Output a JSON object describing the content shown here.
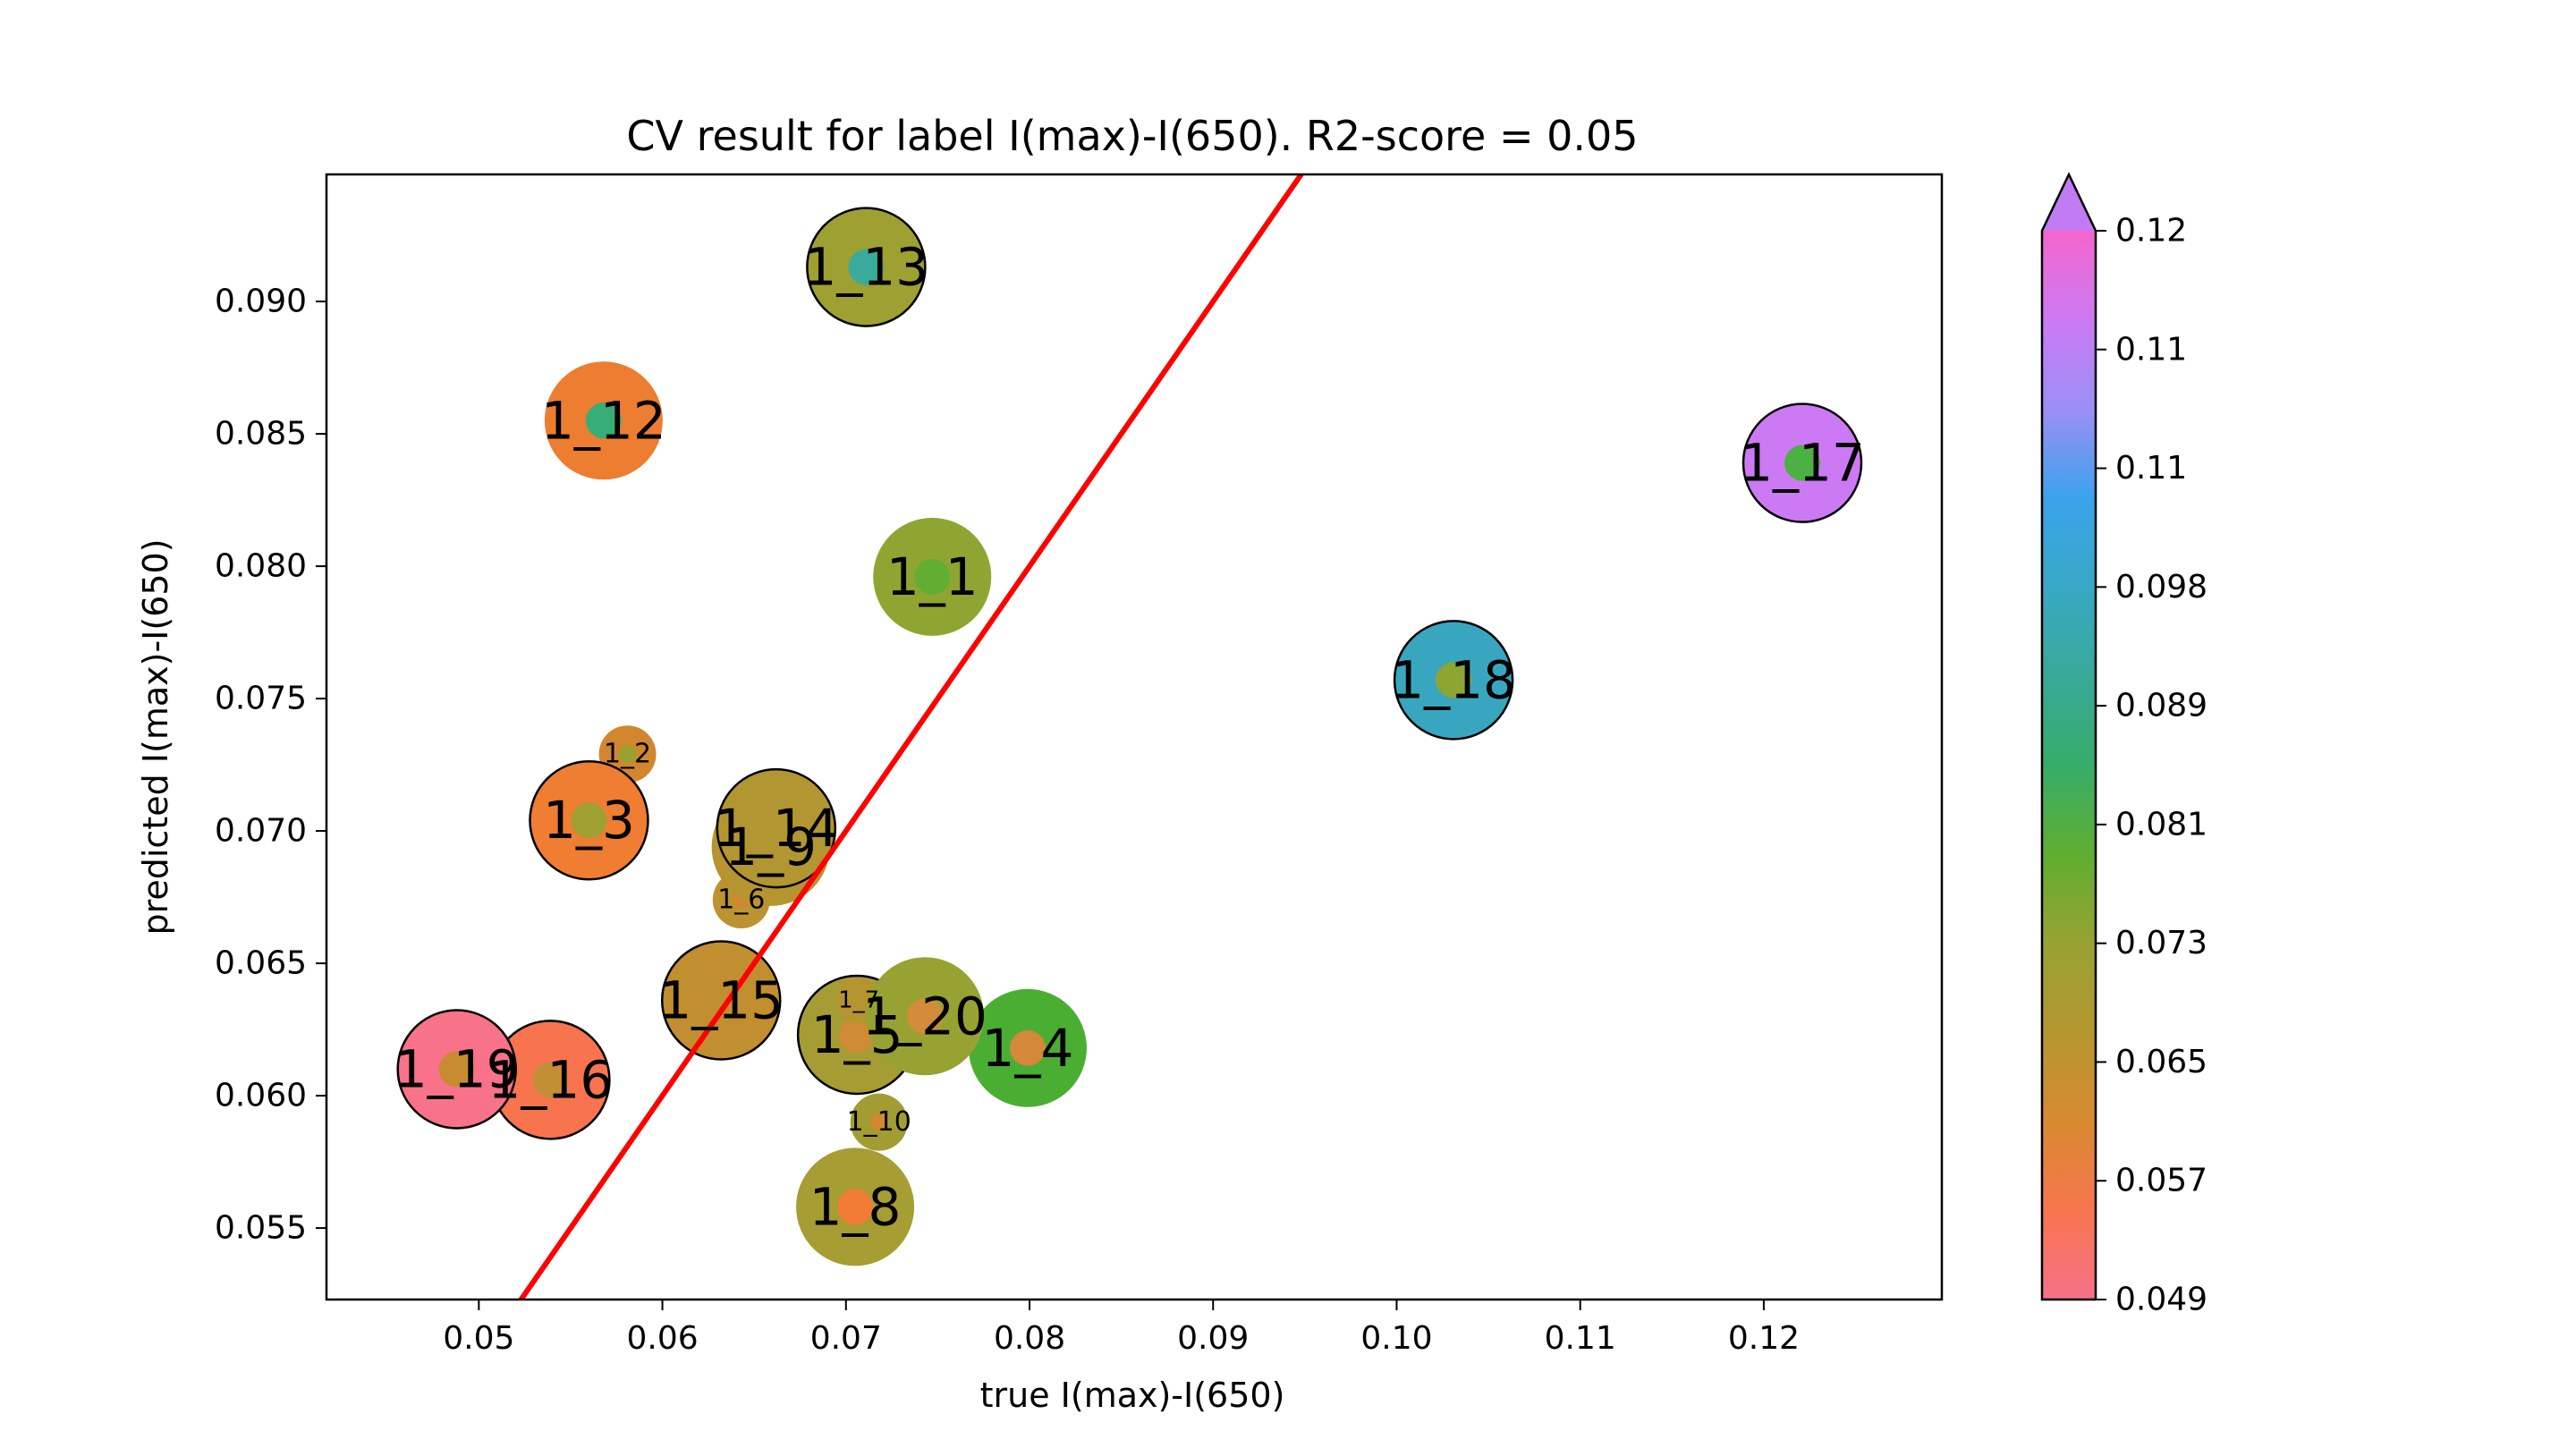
{
  "chart_data": {
    "type": "scatter",
    "title": "CV result for label I(max)-I(650). R2-score = 0.05",
    "xlabel": "true I(max)-I(650)",
    "ylabel": "predicted I(max)-I(650)",
    "xlim": [
      0.0417,
      0.1297
    ],
    "ylim": [
      0.0523,
      0.0948
    ],
    "xticks": [
      0.05,
      0.06,
      0.07,
      0.08,
      0.09,
      0.1,
      0.11,
      0.12
    ],
    "xtick_labels": [
      "0.05",
      "0.06",
      "0.07",
      "0.08",
      "0.09",
      "0.10",
      "0.11",
      "0.12"
    ],
    "yticks": [
      0.055,
      0.06,
      0.065,
      0.07,
      0.075,
      0.08,
      0.085,
      0.09
    ],
    "ytick_labels": [
      "0.055",
      "0.060",
      "0.065",
      "0.070",
      "0.075",
      "0.080",
      "0.085",
      "0.090"
    ],
    "identity_line": {
      "color": "#ff0000",
      "points": [
        [
          0.05,
          0.05
        ],
        [
          0.1,
          0.1
        ]
      ]
    },
    "colorbar": {
      "range": [
        0.049,
        0.12
      ],
      "extend": "max",
      "tick_labels": [
        "0.049",
        "0.057",
        "0.065",
        "0.073",
        "0.081",
        "0.089",
        "0.098",
        "0.11",
        "0.11",
        "0.12"
      ],
      "colors": [
        "#f77189",
        "#f7754f",
        "#d88a31",
        "#b5972f",
        "#98a232",
        "#5fae31",
        "#36ad6a",
        "#39a99a",
        "#38a8c5",
        "#3ba3ec",
        "#9b8ff5",
        "#cc7af4",
        "#f565cc"
      ]
    },
    "grid": false,
    "points": [
      {
        "label": "1_1",
        "x": 0.0747,
        "y": 0.0796,
        "size": "large",
        "outer_color": "#8fa532",
        "inner_color": "#62ae32",
        "edge": false
      },
      {
        "label": "1_2",
        "x": 0.0581,
        "y": 0.0729,
        "size": "small",
        "outer_color": "#d2872f",
        "inner_color": "#9aa131",
        "edge": false
      },
      {
        "label": "1_3",
        "x": 0.056,
        "y": 0.0704,
        "size": "large",
        "outer_color": "#ef7d32",
        "inner_color": "#9ea031",
        "edge": true
      },
      {
        "label": "1_4",
        "x": 0.0799,
        "y": 0.0618,
        "size": "large",
        "outer_color": "#4aae33",
        "inner_color": "#d4883a",
        "edge": false
      },
      {
        "label": "1_5",
        "x": 0.0706,
        "y": 0.0623,
        "size": "large",
        "outer_color": "#a59c33",
        "inner_color": "#d18a35",
        "edge": true
      },
      {
        "label": "1_6",
        "x": 0.0643,
        "y": 0.0674,
        "size": "small",
        "outer_color": "#bb9431",
        "inner_color": "#cc8a30",
        "edge": false
      },
      {
        "label": "1_7",
        "x": 0.0707,
        "y": 0.0636,
        "size": "tiny",
        "outer_color": "#b59530",
        "inner_color": "#b59530",
        "edge": false
      },
      {
        "label": "1_8",
        "x": 0.0705,
        "y": 0.0558,
        "size": "large",
        "outer_color": "#a69d33",
        "inner_color": "#f07c36",
        "edge": false
      },
      {
        "label": "1_9",
        "x": 0.0659,
        "y": 0.0694,
        "size": "large",
        "outer_color": "#b69430",
        "inner_color": "#b69430",
        "edge": false
      },
      {
        "label": "1_10",
        "x": 0.0718,
        "y": 0.059,
        "size": "small",
        "outer_color": "#a19d32",
        "inner_color": "#d2882f",
        "edge": false
      },
      {
        "label": "1_12",
        "x": 0.0568,
        "y": 0.0855,
        "size": "large",
        "outer_color": "#ec7d31",
        "inner_color": "#37ad77",
        "edge": false
      },
      {
        "label": "1_13",
        "x": 0.0711,
        "y": 0.0913,
        "size": "large",
        "outer_color": "#9fa032",
        "inner_color": "#3aab9a",
        "edge": true
      },
      {
        "label": "1_14",
        "x": 0.0662,
        "y": 0.0701,
        "size": "large",
        "outer_color": "#b29631",
        "inner_color": "#b29631",
        "edge": true
      },
      {
        "label": "1_15",
        "x": 0.0632,
        "y": 0.0636,
        "size": "large",
        "outer_color": "#c18e30",
        "inner_color": "#c18e30",
        "edge": true
      },
      {
        "label": "1_16",
        "x": 0.0539,
        "y": 0.0606,
        "size": "large",
        "outer_color": "#f7744f",
        "inner_color": "#c38f34",
        "edge": true
      },
      {
        "label": "1_17",
        "x": 0.1221,
        "y": 0.0839,
        "size": "large",
        "outer_color": "#cc7af4",
        "inner_color": "#4db043",
        "edge": true
      },
      {
        "label": "1_18",
        "x": 0.1031,
        "y": 0.0757,
        "size": "large",
        "outer_color": "#39a6c0",
        "inner_color": "#8da632",
        "edge": true
      },
      {
        "label": "1_19",
        "x": 0.0488,
        "y": 0.061,
        "size": "large",
        "outer_color": "#f87289",
        "inner_color": "#c88c30",
        "edge": true
      },
      {
        "label": "1_20",
        "x": 0.0743,
        "y": 0.063,
        "size": "large",
        "outer_color": "#98a232",
        "inner_color": "#d28c3a",
        "edge": false
      }
    ]
  }
}
